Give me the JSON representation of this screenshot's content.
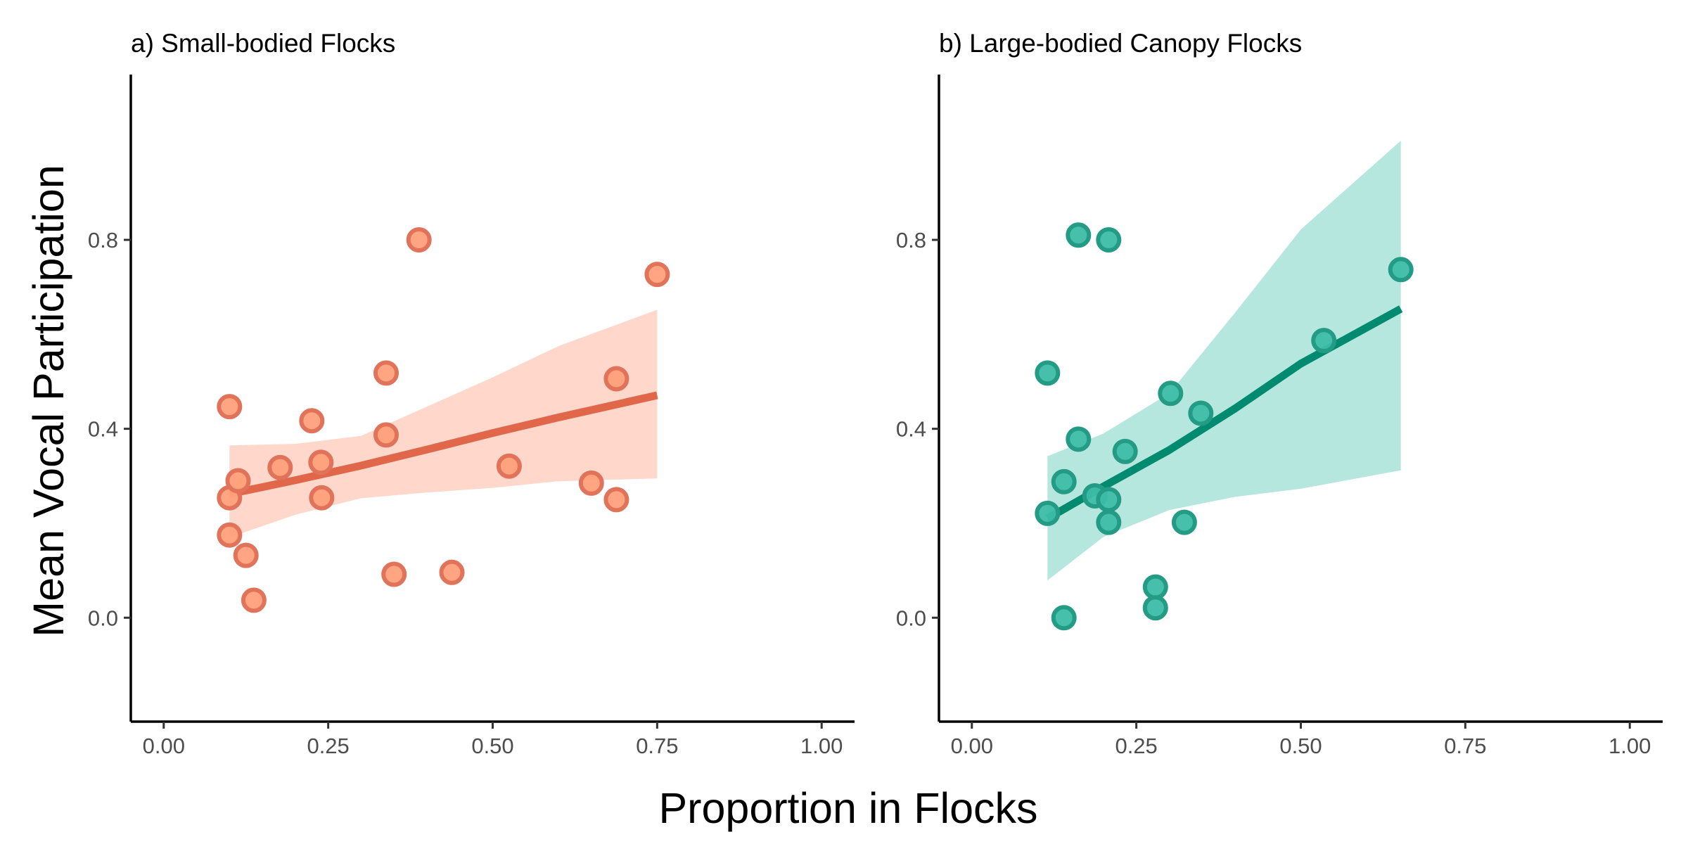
{
  "figure": {
    "ylabel": "Mean Vocal Participation",
    "xlabel": "Proportion in Flocks"
  },
  "chart_data": [
    {
      "type": "scatter",
      "title": "a) Small-bodied Flocks",
      "xlim": [
        -0.05,
        1.05
      ],
      "ylim": [
        -0.22,
        1.15
      ],
      "xticks": [
        "0.00",
        "0.25",
        "0.50",
        "0.75",
        "1.00"
      ],
      "xtick_values": [
        0,
        0.25,
        0.5,
        0.75,
        1.0
      ],
      "yticks": [
        "0.0",
        "0.4",
        "0.8"
      ],
      "ytick_values": [
        0,
        0.4,
        0.8
      ],
      "grid": false,
      "colors": {
        "point_fill": "#FFA07A",
        "point_stroke": "#E0735A",
        "line": "#E0674A",
        "ribbon": "#FFD5C8"
      },
      "points": [
        {
          "x": 0.1,
          "y": 0.447
        },
        {
          "x": 0.1,
          "y": 0.254
        },
        {
          "x": 0.1,
          "y": 0.175
        },
        {
          "x": 0.113,
          "y": 0.29
        },
        {
          "x": 0.125,
          "y": 0.132
        },
        {
          "x": 0.137,
          "y": 0.037
        },
        {
          "x": 0.177,
          "y": 0.318
        },
        {
          "x": 0.225,
          "y": 0.417
        },
        {
          "x": 0.239,
          "y": 0.329
        },
        {
          "x": 0.24,
          "y": 0.254
        },
        {
          "x": 0.338,
          "y": 0.518
        },
        {
          "x": 0.338,
          "y": 0.387
        },
        {
          "x": 0.35,
          "y": 0.092
        },
        {
          "x": 0.388,
          "y": 0.8
        },
        {
          "x": 0.438,
          "y": 0.096
        },
        {
          "x": 0.525,
          "y": 0.321
        },
        {
          "x": 0.65,
          "y": 0.285
        },
        {
          "x": 0.688,
          "y": 0.506
        },
        {
          "x": 0.688,
          "y": 0.25
        },
        {
          "x": 0.75,
          "y": 0.727
        }
      ],
      "fit": {
        "x": [
          0.1,
          0.2,
          0.3,
          0.4,
          0.5,
          0.6,
          0.75
        ],
        "y": [
          0.262,
          0.291,
          0.322,
          0.356,
          0.391,
          0.424,
          0.471
        ],
        "lower": [
          0.17,
          0.218,
          0.253,
          0.265,
          0.275,
          0.289,
          0.295
        ],
        "upper": [
          0.365,
          0.368,
          0.385,
          0.447,
          0.509,
          0.575,
          0.652
        ]
      }
    },
    {
      "type": "scatter",
      "title": "b) Large-bodied Canopy Flocks",
      "xlim": [
        -0.05,
        1.05
      ],
      "ylim": [
        -0.22,
        1.15
      ],
      "xticks": [
        "0.00",
        "0.25",
        "0.50",
        "0.75",
        "1.00"
      ],
      "xtick_values": [
        0,
        0.25,
        0.5,
        0.75,
        1.0
      ],
      "yticks": [
        "0.0",
        "0.4",
        "0.8"
      ],
      "ytick_values": [
        0,
        0.4,
        0.8
      ],
      "grid": false,
      "colors": {
        "point_fill": "#3DBDA6",
        "point_stroke": "#239B85",
        "line": "#008B70",
        "ribbon": "#B2E6DD"
      },
      "points": [
        {
          "x": 0.115,
          "y": 0.518
        },
        {
          "x": 0.115,
          "y": 0.221
        },
        {
          "x": 0.14,
          "y": 0.288
        },
        {
          "x": 0.14,
          "y": 0.0
        },
        {
          "x": 0.162,
          "y": 0.81
        },
        {
          "x": 0.162,
          "y": 0.378
        },
        {
          "x": 0.187,
          "y": 0.258
        },
        {
          "x": 0.208,
          "y": 0.8
        },
        {
          "x": 0.208,
          "y": 0.25
        },
        {
          "x": 0.208,
          "y": 0.202
        },
        {
          "x": 0.233,
          "y": 0.352
        },
        {
          "x": 0.279,
          "y": 0.065
        },
        {
          "x": 0.279,
          "y": 0.021
        },
        {
          "x": 0.302,
          "y": 0.475
        },
        {
          "x": 0.323,
          "y": 0.202
        },
        {
          "x": 0.348,
          "y": 0.433
        },
        {
          "x": 0.535,
          "y": 0.587
        },
        {
          "x": 0.652,
          "y": 0.737
        }
      ],
      "fit": {
        "x": [
          0.115,
          0.2,
          0.3,
          0.4,
          0.5,
          0.652
        ],
        "y": [
          0.21,
          0.278,
          0.355,
          0.443,
          0.538,
          0.654
        ],
        "lower": [
          0.079,
          0.171,
          0.228,
          0.256,
          0.273,
          0.312
        ],
        "upper": [
          0.342,
          0.39,
          0.475,
          0.646,
          0.822,
          1.01
        ]
      }
    }
  ]
}
